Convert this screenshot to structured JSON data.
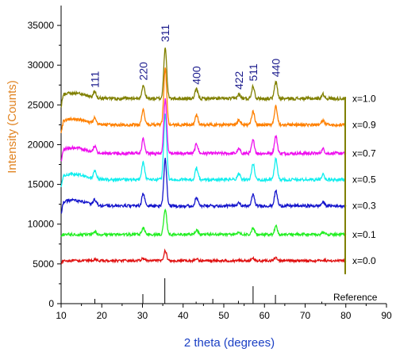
{
  "chart_data": {
    "type": "line",
    "title": "",
    "xlabel": "2 theta (degrees)",
    "ylabel": "Intensity (Counts)",
    "xlim": [
      10,
      90
    ],
    "ylim": [
      0,
      37000
    ],
    "x_ticks": [
      10,
      20,
      30,
      40,
      50,
      60,
      70,
      80,
      90
    ],
    "y_ticks": [
      0,
      5000,
      10000,
      15000,
      20000,
      25000,
      30000,
      35000
    ],
    "grid": false,
    "legend": "labels at right end of each curve",
    "x_range_data": [
      10,
      80
    ],
    "colors": {
      "xlabel": "#1a3fc4",
      "ylabel": "#e0821f",
      "peak_labels": "#1a1a8c"
    },
    "peaks": [
      {
        "label": "111",
        "x": 18.3,
        "height": 0.07
      },
      {
        "label": "220",
        "x": 30.2,
        "height": 0.16
      },
      {
        "label": "311",
        "x": 35.6,
        "height": 0.62
      },
      {
        "label": "400",
        "x": 43.3,
        "height": 0.11
      },
      {
        "label": "422",
        "x": 53.7,
        "height": 0.05
      },
      {
        "label": "511",
        "x": 57.2,
        "height": 0.15
      },
      {
        "label": "440",
        "x": 62.8,
        "height": 0.2
      },
      {
        "label": "",
        "x": 74.4,
        "height": 0.05
      }
    ],
    "series": [
      {
        "name": "x=0.0",
        "color": "#e01010",
        "baseline": 5400,
        "scale": 2000,
        "noise": 150,
        "bump": 0
      },
      {
        "name": "x=0.1",
        "color": "#22ee22",
        "baseline": 8700,
        "scale": 5200,
        "noise": 170,
        "bump": 0
      },
      {
        "name": "x=0.3",
        "color": "#1515cc",
        "baseline": 12300,
        "scale": 9500,
        "noise": 180,
        "bump": 700
      },
      {
        "name": "x=0.5",
        "color": "#11eeee",
        "baseline": 15600,
        "scale": 13500,
        "noise": 190,
        "bump": 700
      },
      {
        "name": "x=0.7",
        "color": "#ee10ee",
        "baseline": 18900,
        "scale": 11000,
        "noise": 190,
        "bump": 700
      },
      {
        "name": "x=0.9",
        "color": "#ff8000",
        "baseline": 22500,
        "scale": 11500,
        "noise": 190,
        "bump": 700
      },
      {
        "name": "x=1.0",
        "color": "#808000",
        "baseline": 25800,
        "scale": 10500,
        "noise": 200,
        "bump": 700
      }
    ],
    "reference": {
      "name": "Reference",
      "lines": [
        {
          "x": 18.3,
          "value": 600
        },
        {
          "x": 30.1,
          "value": 1200
        },
        {
          "x": 35.5,
          "value": 3200
        },
        {
          "x": 43.2,
          "value": 250
        },
        {
          "x": 47.3,
          "value": 600
        },
        {
          "x": 53.6,
          "value": 350
        },
        {
          "x": 57.2,
          "value": 2200
        },
        {
          "x": 62.7,
          "value": 1100
        },
        {
          "x": 74.1,
          "value": 250
        }
      ]
    }
  }
}
